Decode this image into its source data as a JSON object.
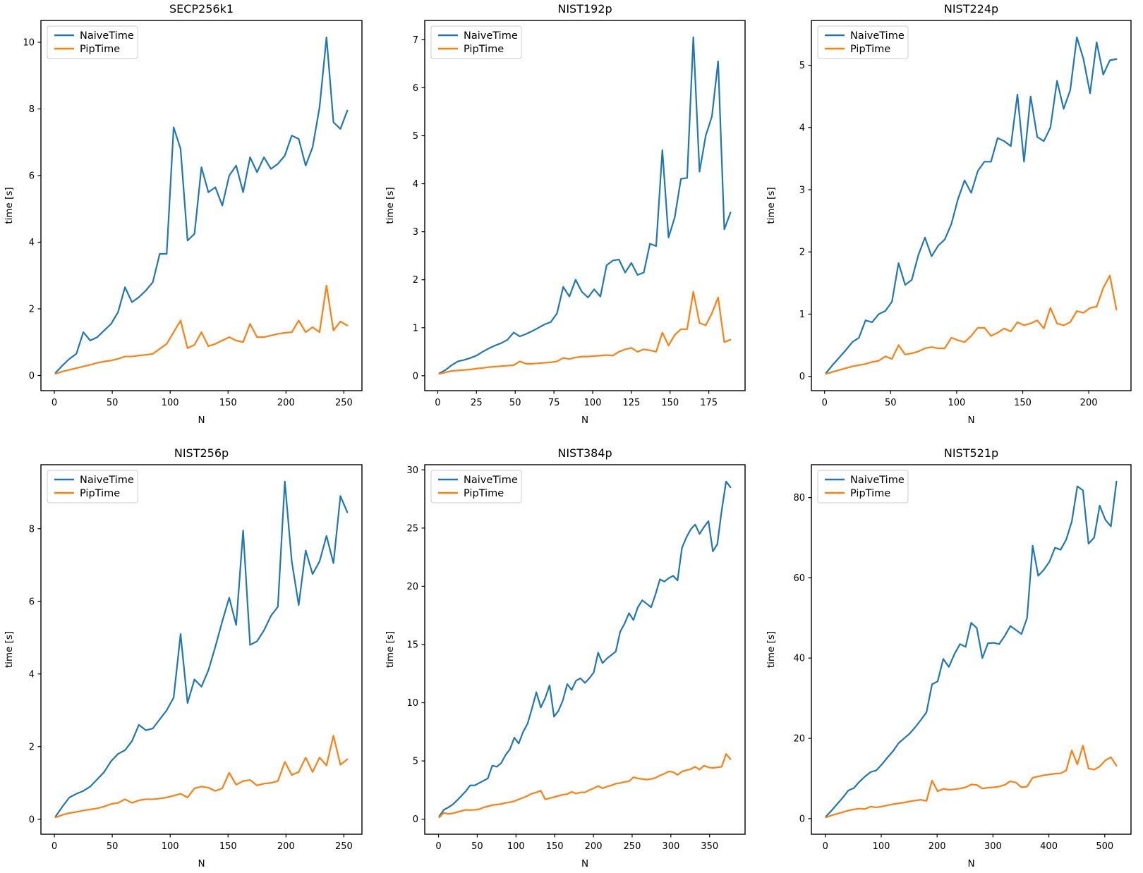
{
  "figure": {
    "background": "#ffffff"
  },
  "colors": {
    "naive": "#1f77b4",
    "pip": "#ff7f0e",
    "axis": "#000000",
    "text": "#000000",
    "legend_border": "#cccccc",
    "legend_background": "#ffffff"
  },
  "legend": {
    "position": "upper left",
    "entries": [
      {
        "label": "NaiveTime",
        "color_key": "naive"
      },
      {
        "label": "PipTime",
        "color_key": "pip"
      }
    ]
  },
  "chart_data": [
    {
      "type": "line",
      "title": "SECP256k1",
      "xlabel": "N",
      "ylabel": "time [s]",
      "x_start": 1,
      "x_end": 253,
      "x_ticks": [
        0,
        50,
        100,
        150,
        200,
        250
      ],
      "y_ticks": [
        0,
        2,
        4,
        6,
        8,
        10
      ],
      "grid": false,
      "legend_position": "upper left",
      "series": [
        {
          "name": "NaiveTime",
          "color_key": "naive",
          "values": [
            0.08,
            0.3,
            0.5,
            0.65,
            1.3,
            1.05,
            1.15,
            1.35,
            1.55,
            1.9,
            2.65,
            2.2,
            2.35,
            2.55,
            2.8,
            3.65,
            3.65,
            7.45,
            6.8,
            4.05,
            4.25,
            6.25,
            5.5,
            5.65,
            5.1,
            6.0,
            6.3,
            5.5,
            6.55,
            6.1,
            6.55,
            6.2,
            6.35,
            6.6,
            7.2,
            7.1,
            6.3,
            6.85,
            8.05,
            10.15,
            7.6,
            7.4,
            7.95
          ]
        },
        {
          "name": "PipTime",
          "color_key": "pip",
          "values": [
            0.05,
            0.12,
            0.17,
            0.22,
            0.27,
            0.32,
            0.38,
            0.42,
            0.45,
            0.5,
            0.57,
            0.57,
            0.6,
            0.62,
            0.65,
            0.8,
            0.95,
            1.3,
            1.65,
            0.82,
            0.92,
            1.3,
            0.88,
            0.95,
            1.05,
            1.15,
            1.05,
            1.0,
            1.55,
            1.15,
            1.15,
            1.2,
            1.25,
            1.28,
            1.3,
            1.65,
            1.3,
            1.45,
            1.3,
            2.7,
            1.35,
            1.62,
            1.5
          ]
        }
      ]
    },
    {
      "type": "line",
      "title": "NIST192p",
      "xlabel": "N",
      "ylabel": "time [s]",
      "x_start": 1,
      "x_end": 189,
      "x_ticks": [
        0,
        25,
        50,
        75,
        100,
        125,
        150,
        175
      ],
      "y_ticks": [
        0,
        1,
        2,
        3,
        4,
        5,
        6,
        7
      ],
      "grid": false,
      "legend_position": "upper left",
      "series": [
        {
          "name": "NaiveTime",
          "color_key": "naive",
          "values": [
            0.05,
            0.12,
            0.22,
            0.3,
            0.33,
            0.37,
            0.42,
            0.5,
            0.57,
            0.63,
            0.68,
            0.75,
            0.9,
            0.82,
            0.87,
            0.93,
            1.0,
            1.07,
            1.12,
            1.3,
            1.85,
            1.65,
            2.0,
            1.75,
            1.63,
            1.8,
            1.65,
            2.3,
            2.4,
            2.42,
            2.15,
            2.35,
            2.1,
            2.15,
            2.75,
            2.7,
            4.7,
            2.88,
            3.3,
            4.1,
            4.12,
            7.05,
            4.25,
            5.0,
            5.4,
            6.55,
            3.05,
            3.4
          ]
        },
        {
          "name": "PipTime",
          "color_key": "pip",
          "values": [
            0.04,
            0.07,
            0.1,
            0.11,
            0.12,
            0.13,
            0.15,
            0.16,
            0.18,
            0.19,
            0.2,
            0.21,
            0.22,
            0.3,
            0.25,
            0.25,
            0.26,
            0.27,
            0.28,
            0.3,
            0.37,
            0.35,
            0.38,
            0.4,
            0.4,
            0.41,
            0.42,
            0.43,
            0.42,
            0.5,
            0.55,
            0.58,
            0.5,
            0.55,
            0.53,
            0.5,
            0.9,
            0.63,
            0.85,
            0.97,
            0.97,
            1.75,
            1.1,
            1.05,
            1.3,
            1.63,
            0.7,
            0.75
          ]
        }
      ]
    },
    {
      "type": "line",
      "title": "NIST224p",
      "xlabel": "N",
      "ylabel": "time [s]",
      "x_start": 1,
      "x_end": 221,
      "x_ticks": [
        0,
        50,
        100,
        150,
        200
      ],
      "y_ticks": [
        0,
        1,
        2,
        3,
        4,
        5
      ],
      "grid": false,
      "legend_position": "upper left",
      "series": [
        {
          "name": "NaiveTime",
          "color_key": "naive",
          "values": [
            0.05,
            0.18,
            0.3,
            0.42,
            0.55,
            0.62,
            0.9,
            0.87,
            1.0,
            1.05,
            1.2,
            1.82,
            1.47,
            1.55,
            1.95,
            2.23,
            1.93,
            2.1,
            2.2,
            2.45,
            2.85,
            3.15,
            2.95,
            3.3,
            3.45,
            3.45,
            3.83,
            3.78,
            3.7,
            4.53,
            3.45,
            4.5,
            3.85,
            3.78,
            4.0,
            4.75,
            4.3,
            4.6,
            5.45,
            5.1,
            4.55,
            5.37,
            4.85,
            5.08,
            5.1
          ]
        },
        {
          "name": "PipTime",
          "color_key": "pip",
          "values": [
            0.04,
            0.07,
            0.1,
            0.13,
            0.16,
            0.18,
            0.2,
            0.23,
            0.25,
            0.32,
            0.28,
            0.5,
            0.35,
            0.37,
            0.4,
            0.45,
            0.47,
            0.45,
            0.45,
            0.62,
            0.58,
            0.55,
            0.65,
            0.78,
            0.78,
            0.65,
            0.7,
            0.77,
            0.72,
            0.87,
            0.82,
            0.85,
            0.9,
            0.77,
            1.1,
            0.85,
            0.82,
            0.87,
            1.05,
            1.02,
            1.1,
            1.12,
            1.42,
            1.62,
            1.07
          ]
        }
      ]
    },
    {
      "type": "line",
      "title": "NIST256p",
      "xlabel": "N",
      "ylabel": "time [s]",
      "x_start": 1,
      "x_end": 253,
      "x_ticks": [
        0,
        50,
        100,
        150,
        200,
        250
      ],
      "y_ticks": [
        0,
        2,
        4,
        6,
        8
      ],
      "grid": false,
      "legend_position": "upper left",
      "series": [
        {
          "name": "NaiveTime",
          "color_key": "naive",
          "values": [
            0.07,
            0.35,
            0.6,
            0.7,
            0.78,
            0.9,
            1.1,
            1.3,
            1.6,
            1.8,
            1.9,
            2.15,
            2.6,
            2.45,
            2.5,
            2.75,
            3.0,
            3.35,
            5.1,
            3.2,
            3.85,
            3.65,
            4.1,
            4.75,
            5.45,
            6.1,
            5.35,
            7.95,
            4.8,
            4.9,
            5.2,
            5.6,
            5.85,
            9.3,
            7.1,
            5.9,
            7.4,
            6.75,
            7.1,
            7.8,
            7.05,
            8.9,
            8.45
          ]
        },
        {
          "name": "PipTime",
          "color_key": "pip",
          "values": [
            0.05,
            0.12,
            0.17,
            0.2,
            0.24,
            0.27,
            0.3,
            0.35,
            0.42,
            0.45,
            0.55,
            0.45,
            0.52,
            0.55,
            0.55,
            0.57,
            0.6,
            0.65,
            0.7,
            0.6,
            0.85,
            0.9,
            0.87,
            0.78,
            0.85,
            1.28,
            0.95,
            1.05,
            1.08,
            0.93,
            0.98,
            1.0,
            1.05,
            1.58,
            1.22,
            1.3,
            1.7,
            1.3,
            1.7,
            1.48,
            2.3,
            1.5,
            1.65
          ]
        }
      ]
    },
    {
      "type": "line",
      "title": "NIST384p",
      "xlabel": "N",
      "ylabel": "time [s]",
      "x_start": 1,
      "x_end": 377,
      "x_ticks": [
        0,
        50,
        100,
        150,
        200,
        250,
        300,
        350
      ],
      "y_ticks": [
        0,
        5,
        10,
        15,
        20,
        25,
        30
      ],
      "grid": false,
      "legend_position": "upper left",
      "series": [
        {
          "name": "NaiveTime",
          "color_key": "naive",
          "values": [
            0.25,
            0.8,
            1.0,
            1.25,
            1.6,
            2.0,
            2.4,
            2.9,
            2.9,
            3.1,
            3.3,
            3.5,
            4.6,
            4.5,
            4.8,
            5.5,
            6.0,
            7.0,
            6.5,
            7.5,
            8.2,
            9.5,
            10.9,
            9.6,
            10.4,
            11.5,
            8.8,
            9.3,
            10.2,
            11.6,
            11.1,
            11.9,
            12.1,
            11.7,
            12.1,
            12.6,
            14.3,
            13.4,
            13.8,
            14.1,
            14.4,
            16.1,
            16.8,
            17.7,
            17.1,
            18.2,
            18.8,
            18.5,
            18.2,
            19.3,
            20.6,
            20.4,
            20.7,
            20.9,
            20.5,
            23.3,
            24.2,
            24.9,
            25.3,
            24.5,
            25.1,
            25.6,
            23.0,
            23.6,
            26.5,
            29.0,
            28.5
          ]
        },
        {
          "name": "PipTime",
          "color_key": "pip",
          "values": [
            0.15,
            0.55,
            0.45,
            0.5,
            0.6,
            0.7,
            0.8,
            0.78,
            0.8,
            0.85,
            1.0,
            1.1,
            1.2,
            1.25,
            1.3,
            1.4,
            1.45,
            1.55,
            1.7,
            1.85,
            2.0,
            2.2,
            2.3,
            2.45,
            1.7,
            1.8,
            1.9,
            2.0,
            2.1,
            2.15,
            2.35,
            2.2,
            2.3,
            2.3,
            2.5,
            2.65,
            2.85,
            2.65,
            2.8,
            2.9,
            3.05,
            3.1,
            3.2,
            3.25,
            3.6,
            3.5,
            3.45,
            3.4,
            3.45,
            3.55,
            3.75,
            3.9,
            4.1,
            4.05,
            3.8,
            4.1,
            4.2,
            4.3,
            4.5,
            4.25,
            4.6,
            4.45,
            4.4,
            4.45,
            4.5,
            5.6,
            5.15
          ]
        }
      ]
    },
    {
      "type": "line",
      "title": "NIST521p",
      "xlabel": "N",
      "ylabel": "time [s]",
      "x_start": 1,
      "x_end": 521,
      "x_ticks": [
        0,
        100,
        200,
        300,
        400,
        500
      ],
      "y_ticks": [
        0,
        20,
        40,
        60,
        80
      ],
      "grid": false,
      "legend_position": "upper left",
      "series": [
        {
          "name": "NaiveTime",
          "color_key": "naive",
          "values": [
            0.5,
            2.0,
            3.6,
            5.2,
            7.0,
            7.6,
            9.2,
            10.5,
            11.6,
            12.0,
            13.5,
            15.2,
            16.8,
            18.8,
            20.0,
            21.2,
            22.8,
            24.6,
            26.5,
            33.5,
            34.2,
            39.8,
            37.8,
            41.0,
            43.5,
            42.8,
            48.8,
            47.5,
            40.0,
            43.7,
            43.8,
            43.5,
            45.5,
            48.0,
            47.0,
            46.0,
            50.0,
            68.0,
            60.5,
            62.0,
            64.0,
            67.5,
            67.0,
            69.5,
            74.0,
            82.8,
            81.8,
            68.5,
            70.0,
            78.0,
            74.5,
            72.8,
            84.0
          ]
        },
        {
          "name": "PipTime",
          "color_key": "pip",
          "values": [
            0.3,
            0.8,
            1.2,
            1.6,
            2.0,
            2.3,
            2.5,
            2.4,
            3.0,
            2.8,
            3.0,
            3.3,
            3.6,
            3.8,
            4.0,
            4.3,
            4.5,
            4.7,
            4.4,
            9.5,
            6.8,
            7.4,
            7.2,
            7.3,
            7.5,
            7.8,
            8.5,
            8.4,
            7.5,
            7.7,
            7.8,
            8.0,
            8.4,
            9.3,
            9.0,
            7.8,
            8.0,
            10.2,
            10.5,
            10.8,
            11.0,
            11.2,
            11.3,
            12.0,
            17.0,
            13.5,
            18.2,
            12.5,
            12.2,
            13.0,
            14.5,
            15.3,
            13.2
          ]
        }
      ]
    }
  ]
}
